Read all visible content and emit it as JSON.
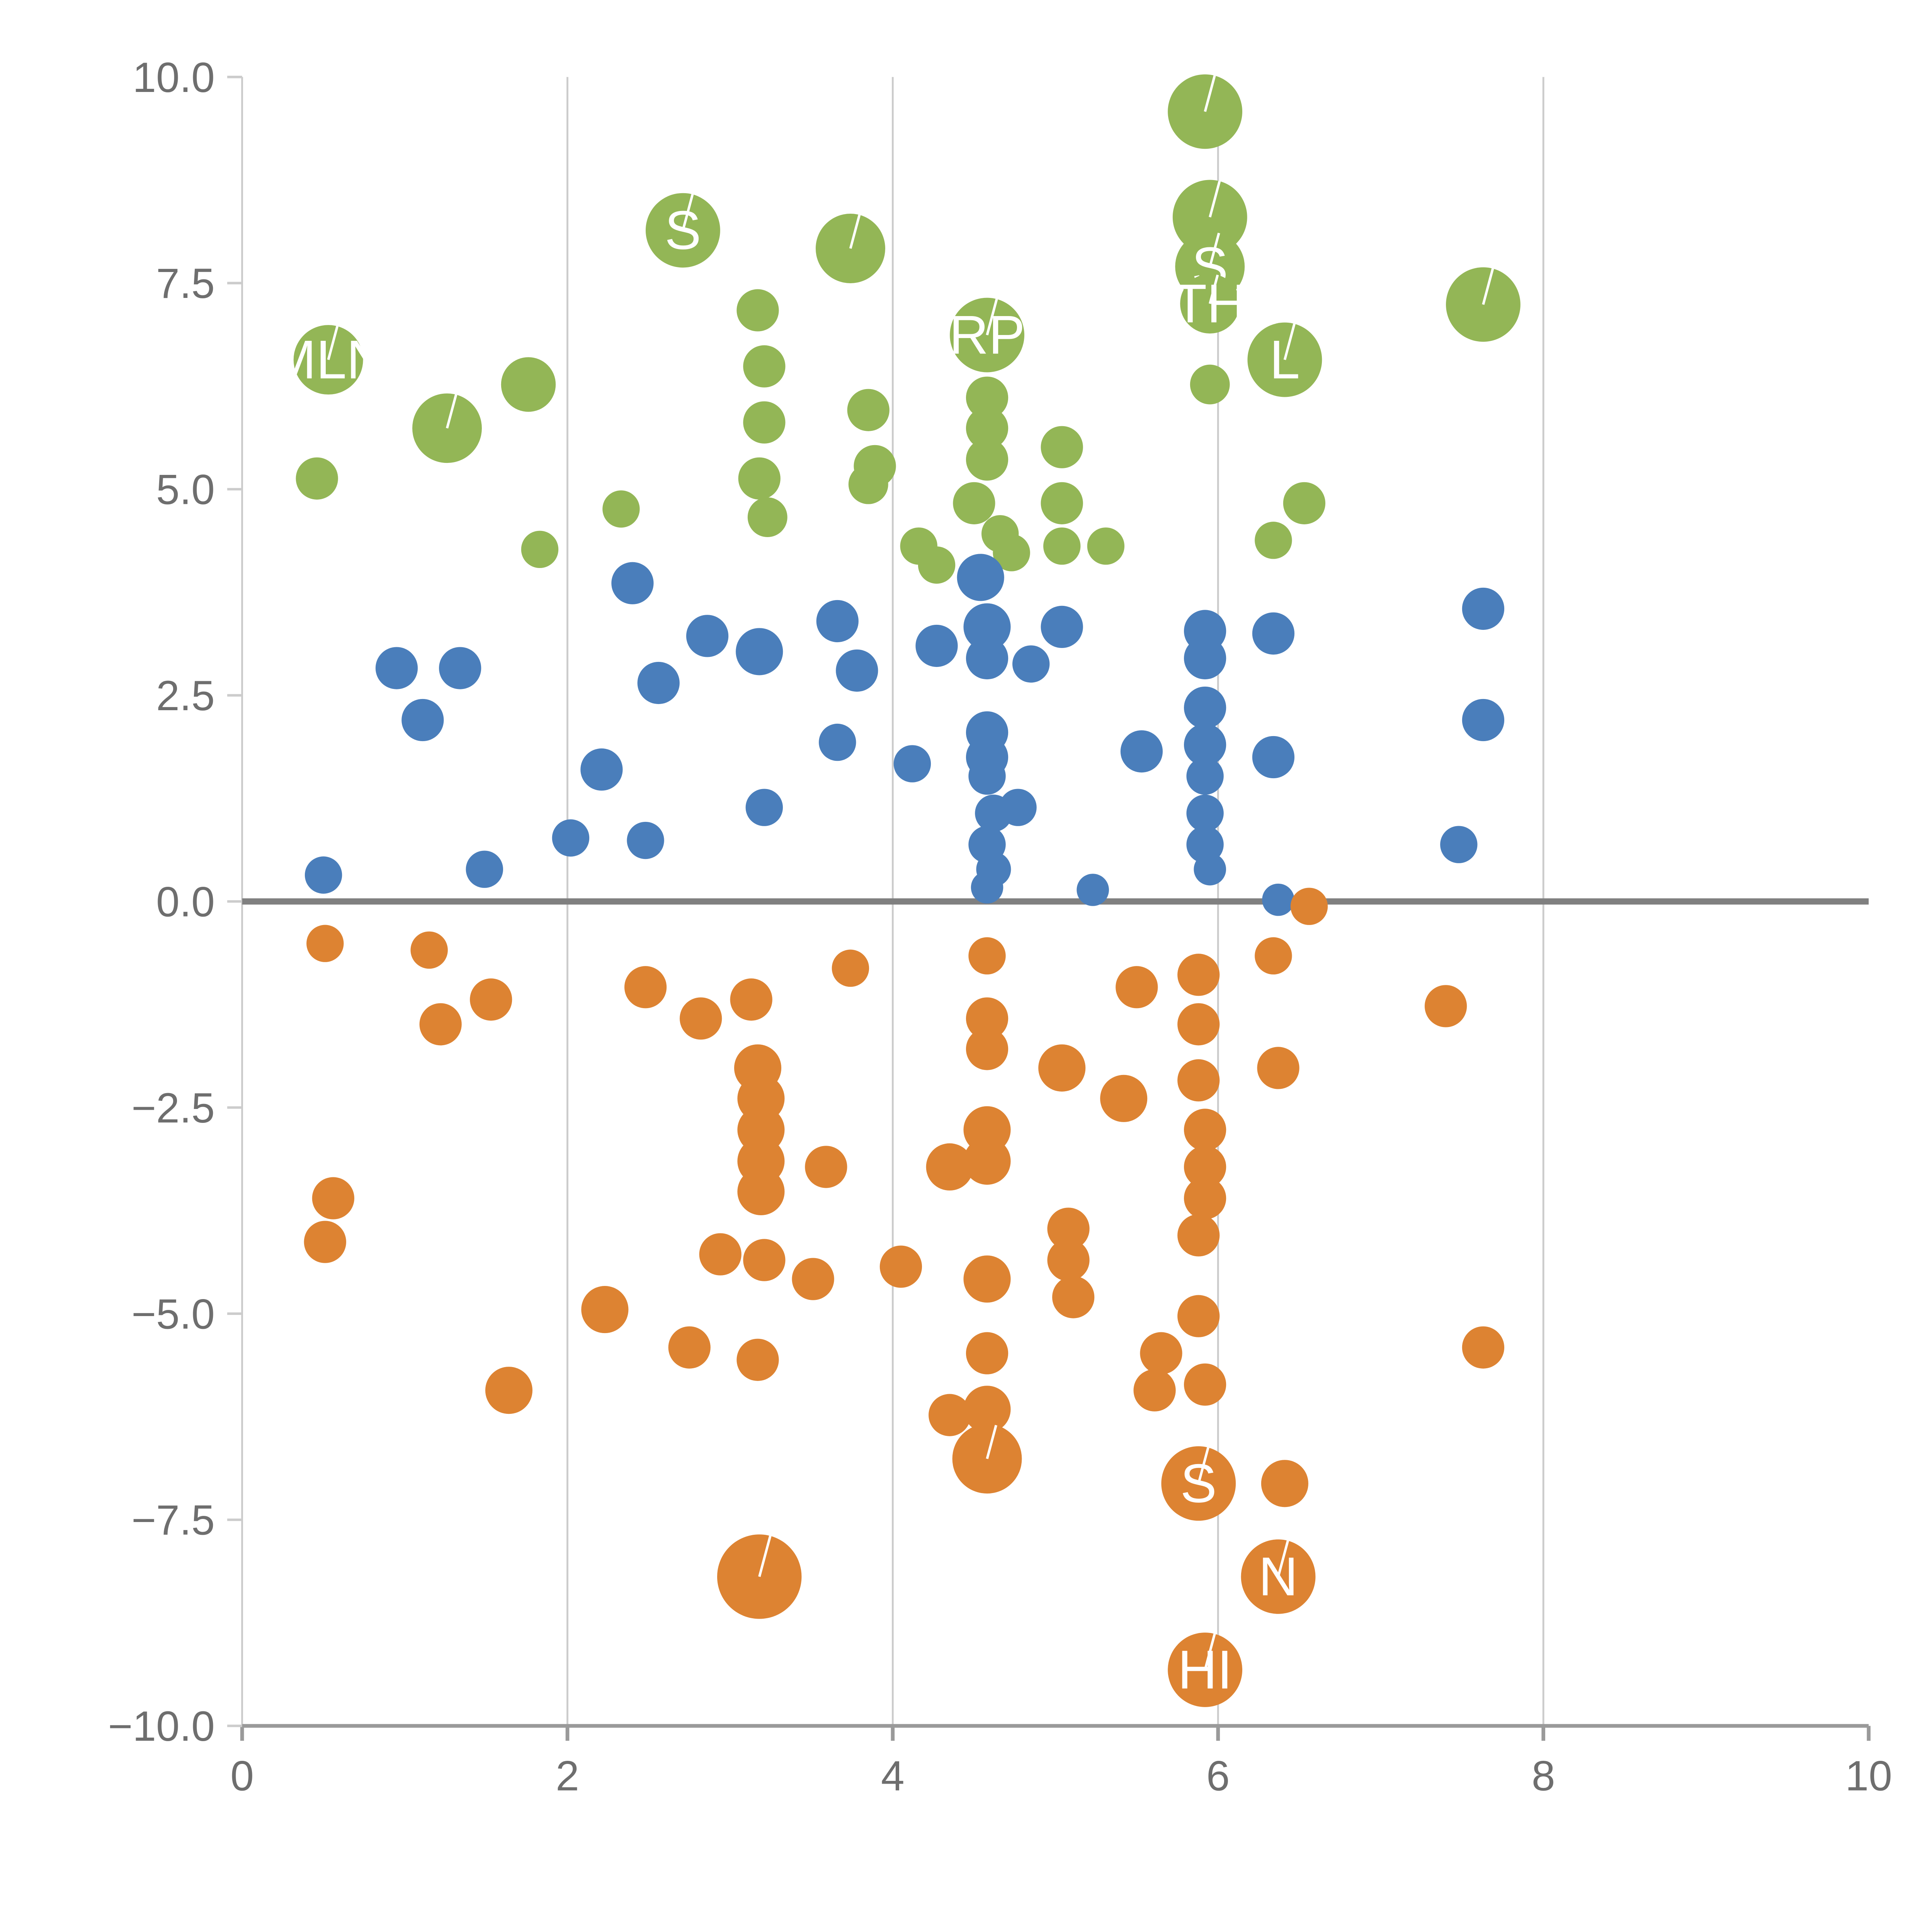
{
  "chart_data": {
    "type": "scatter",
    "title": "",
    "xlabel": "",
    "ylabel": "",
    "xlim": [
      0,
      10
    ],
    "ylim": [
      -10,
      10
    ],
    "x_ticks": [
      0,
      2,
      4,
      6,
      8,
      10
    ],
    "x_tick_labels": [
      "0",
      "2",
      "4",
      "6",
      "8",
      "10"
    ],
    "y_ticks": [
      10,
      7.5,
      5,
      2.5,
      0,
      -2.5,
      -5,
      -7.5,
      -10
    ],
    "y_tick_labels": [
      "10.0",
      "7.5",
      "5.0",
      "2.5",
      "0.0",
      "−2.5",
      "−5.0",
      "−7.5",
      "−10.0"
    ],
    "grid": {
      "vertical_lines_at": [
        2,
        4,
        6,
        8
      ],
      "gridline_color": "#cccccc",
      "zero_line_y": 0,
      "zero_line_color": "#808080",
      "axis_color": "#9a9a9a"
    },
    "legend": "none",
    "series": [
      {
        "name": "green",
        "color": "#93b656",
        "points": [
          [
            0.53,
            6.57,
            28,
            "MLN"
          ],
          [
            0.46,
            5.13,
            17,
            ""
          ],
          [
            1.26,
            5.74,
            28,
            ""
          ],
          [
            1.76,
            6.27,
            22,
            ""
          ],
          [
            1.83,
            4.27,
            15,
            ""
          ],
          [
            2.33,
            4.76,
            15,
            ""
          ],
          [
            2.71,
            8.14,
            30,
            "S"
          ],
          [
            3.17,
            7.17,
            17,
            ""
          ],
          [
            3.21,
            6.49,
            17,
            ""
          ],
          [
            3.21,
            5.81,
            17,
            ""
          ],
          [
            3.18,
            5.13,
            17,
            ""
          ],
          [
            3.23,
            4.66,
            16,
            ""
          ],
          [
            3.74,
            7.92,
            28,
            ""
          ],
          [
            3.85,
            5.96,
            17,
            ""
          ],
          [
            3.89,
            5.28,
            17,
            ""
          ],
          [
            3.85,
            5.06,
            16,
            ""
          ],
          [
            4.16,
            4.31,
            15,
            ""
          ],
          [
            4.27,
            4.08,
            15,
            ""
          ],
          [
            4.58,
            6.87,
            30,
            "RP"
          ],
          [
            4.5,
            4.83,
            17,
            ""
          ],
          [
            4.58,
            6.11,
            17,
            ""
          ],
          [
            4.58,
            5.74,
            17,
            ""
          ],
          [
            4.58,
            5.36,
            17,
            ""
          ],
          [
            4.66,
            4.46,
            15,
            ""
          ],
          [
            4.73,
            4.23,
            15,
            ""
          ],
          [
            5.04,
            5.51,
            17,
            ""
          ],
          [
            5.04,
            4.83,
            17,
            ""
          ],
          [
            5.04,
            4.31,
            15,
            ""
          ],
          [
            5.31,
            4.31,
            15,
            ""
          ],
          [
            5.92,
            9.58,
            30,
            ""
          ],
          [
            5.95,
            8.3,
            30,
            ""
          ],
          [
            5.95,
            7.7,
            28,
            "S"
          ],
          [
            5.95,
            7.25,
            24,
            "TH"
          ],
          [
            5.95,
            6.27,
            16,
            ""
          ],
          [
            6.41,
            6.57,
            30,
            "L"
          ],
          [
            6.34,
            4.38,
            15,
            ""
          ],
          [
            6.53,
            4.83,
            17,
            ""
          ],
          [
            7.63,
            7.24,
            30,
            ""
          ]
        ]
      },
      {
        "name": "blue",
        "color": "#4a7ebb",
        "points": [
          [
            0.5,
            0.32,
            15,
            ""
          ],
          [
            0.95,
            2.83,
            17,
            ""
          ],
          [
            1.11,
            2.2,
            17,
            ""
          ],
          [
            1.34,
            2.83,
            17,
            ""
          ],
          [
            1.49,
            0.39,
            15,
            ""
          ],
          [
            2.02,
            0.77,
            15,
            ""
          ],
          [
            2.21,
            1.6,
            17,
            ""
          ],
          [
            2.4,
            3.86,
            17,
            ""
          ],
          [
            2.56,
            2.65,
            17,
            ""
          ],
          [
            2.48,
            0.74,
            15,
            ""
          ],
          [
            2.86,
            3.22,
            17,
            ""
          ],
          [
            3.18,
            3.03,
            19,
            ""
          ],
          [
            3.21,
            1.14,
            15,
            ""
          ],
          [
            3.66,
            3.4,
            17,
            ""
          ],
          [
            3.66,
            1.93,
            15,
            ""
          ],
          [
            3.78,
            2.8,
            17,
            ""
          ],
          [
            4.12,
            1.67,
            15,
            ""
          ],
          [
            4.27,
            3.1,
            17,
            ""
          ],
          [
            4.54,
            3.93,
            19,
            ""
          ],
          [
            4.58,
            3.33,
            19,
            ""
          ],
          [
            4.58,
            2.95,
            17,
            ""
          ],
          [
            4.58,
            2.05,
            17,
            ""
          ],
          [
            4.58,
            1.75,
            17,
            ""
          ],
          [
            4.58,
            1.52,
            15,
            ""
          ],
          [
            4.62,
            1.07,
            15,
            ""
          ],
          [
            4.58,
            0.69,
            15,
            ""
          ],
          [
            4.62,
            0.39,
            14,
            ""
          ],
          [
            4.58,
            0.17,
            13,
            ""
          ],
          [
            4.77,
            1.14,
            15,
            ""
          ],
          [
            4.85,
            2.88,
            15,
            ""
          ],
          [
            5.04,
            3.33,
            17,
            ""
          ],
          [
            5.23,
            0.14,
            13,
            ""
          ],
          [
            5.53,
            1.82,
            17,
            ""
          ],
          [
            5.92,
            3.28,
            17,
            ""
          ],
          [
            5.92,
            2.95,
            17,
            ""
          ],
          [
            5.92,
            2.35,
            17,
            ""
          ],
          [
            5.92,
            1.9,
            17,
            ""
          ],
          [
            5.92,
            1.52,
            15,
            ""
          ],
          [
            5.92,
            1.07,
            15,
            ""
          ],
          [
            5.92,
            0.69,
            15,
            ""
          ],
          [
            5.95,
            0.39,
            13,
            ""
          ],
          [
            6.34,
            3.25,
            17,
            ""
          ],
          [
            6.34,
            1.75,
            17,
            ""
          ],
          [
            6.37,
            0.02,
            13,
            ""
          ],
          [
            7.48,
            0.69,
            15,
            ""
          ],
          [
            7.63,
            3.55,
            17,
            ""
          ],
          [
            7.63,
            2.2,
            17,
            ""
          ]
        ]
      },
      {
        "name": "orange",
        "color": "#dd8332",
        "points": [
          [
            0.51,
            -0.51,
            15,
            ""
          ],
          [
            0.56,
            -3.6,
            17,
            ""
          ],
          [
            0.51,
            -4.13,
            17,
            ""
          ],
          [
            1.15,
            -0.59,
            15,
            ""
          ],
          [
            1.22,
            -1.49,
            17,
            ""
          ],
          [
            1.53,
            -1.19,
            17,
            ""
          ],
          [
            1.64,
            -5.93,
            19,
            ""
          ],
          [
            2.23,
            -4.95,
            19,
            ""
          ],
          [
            2.48,
            -1.04,
            17,
            ""
          ],
          [
            2.75,
            -5.41,
            17,
            ""
          ],
          [
            2.82,
            -1.42,
            17,
            ""
          ],
          [
            3.13,
            -1.19,
            17,
            ""
          ],
          [
            3.17,
            -2.02,
            19,
            ""
          ],
          [
            3.19,
            -2.39,
            19,
            ""
          ],
          [
            3.19,
            -2.77,
            19,
            ""
          ],
          [
            3.19,
            -3.15,
            19,
            ""
          ],
          [
            3.19,
            -3.52,
            19,
            ""
          ],
          [
            2.94,
            -4.28,
            17,
            ""
          ],
          [
            3.21,
            -4.35,
            17,
            ""
          ],
          [
            3.17,
            -5.56,
            17,
            ""
          ],
          [
            3.18,
            -8.19,
            34,
            ""
          ],
          [
            3.51,
            -4.58,
            17,
            ""
          ],
          [
            3.59,
            -3.22,
            17,
            ""
          ],
          [
            3.74,
            -0.81,
            15,
            ""
          ],
          [
            4.05,
            -4.43,
            17,
            ""
          ],
          [
            4.35,
            -3.22,
            19,
            ""
          ],
          [
            4.35,
            -6.23,
            17,
            ""
          ],
          [
            4.58,
            -0.66,
            15,
            ""
          ],
          [
            4.58,
            -1.42,
            17,
            ""
          ],
          [
            4.58,
            -1.79,
            17,
            ""
          ],
          [
            4.58,
            -2.77,
            19,
            ""
          ],
          [
            4.58,
            -3.15,
            19,
            ""
          ],
          [
            4.58,
            -4.58,
            19,
            ""
          ],
          [
            4.58,
            -5.48,
            17,
            ""
          ],
          [
            4.58,
            -6.16,
            19,
            ""
          ],
          [
            4.58,
            -6.76,
            28,
            ""
          ],
          [
            5.04,
            -2.02,
            19,
            ""
          ],
          [
            5.08,
            -3.97,
            17,
            ""
          ],
          [
            5.08,
            -4.35,
            17,
            ""
          ],
          [
            5.11,
            -4.8,
            17,
            ""
          ],
          [
            5.42,
            -2.39,
            19,
            ""
          ],
          [
            5.5,
            -1.04,
            17,
            ""
          ],
          [
            5.65,
            -5.48,
            17,
            ""
          ],
          [
            5.61,
            -5.93,
            17,
            ""
          ],
          [
            5.88,
            -0.89,
            17,
            ""
          ],
          [
            5.88,
            -1.49,
            17,
            ""
          ],
          [
            5.88,
            -2.17,
            17,
            ""
          ],
          [
            5.92,
            -2.77,
            17,
            ""
          ],
          [
            5.92,
            -3.22,
            17,
            ""
          ],
          [
            5.92,
            -3.6,
            17,
            ""
          ],
          [
            5.88,
            -4.05,
            17,
            ""
          ],
          [
            5.88,
            -5.03,
            17,
            ""
          ],
          [
            5.92,
            -5.86,
            17,
            ""
          ],
          [
            5.88,
            -7.06,
            30,
            "S"
          ],
          [
            6.34,
            -0.66,
            15,
            ""
          ],
          [
            6.37,
            -2.02,
            17,
            ""
          ],
          [
            6.41,
            -7.06,
            19,
            ""
          ],
          [
            6.37,
            -8.19,
            30,
            "N"
          ],
          [
            6.56,
            -0.06,
            15,
            ""
          ],
          [
            7.4,
            -1.27,
            17,
            ""
          ],
          [
            7.63,
            -5.41,
            17,
            ""
          ],
          [
            5.92,
            -9.32,
            30,
            "HI"
          ]
        ]
      }
    ]
  }
}
